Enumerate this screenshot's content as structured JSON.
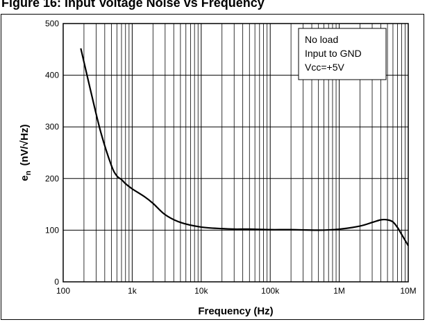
{
  "header": {
    "title": "Figure 16: Input Voltage Noise vs Frequency"
  },
  "chart_data": {
    "type": "line",
    "title": "Input Voltage Noise vs Frequency",
    "xlabel": "Frequency  (Hz)",
    "ylabel_main": "e",
    "ylabel_sub": "n",
    "ylabel_units": "(nV/√Hz)",
    "x_scale": "log",
    "xlim": [
      100,
      10000000
    ],
    "ylim": [
      0,
      500
    ],
    "x_ticks": [
      {
        "value": 100,
        "label": "100"
      },
      {
        "value": 1000,
        "label": "1k"
      },
      {
        "value": 10000,
        "label": "10k"
      },
      {
        "value": 100000,
        "label": "100k"
      },
      {
        "value": 1000000,
        "label": "1M"
      },
      {
        "value": 10000000,
        "label": "10M"
      }
    ],
    "y_ticks": [
      0,
      100,
      200,
      300,
      400,
      500
    ],
    "grid": true,
    "legend_box": {
      "placement": "top-right",
      "lines": [
        "No load",
        "Input to GND",
        "Vcc=+5V"
      ]
    },
    "series": [
      {
        "color": "#000000",
        "x": [
          180,
          250,
          350,
          500,
          600,
          700,
          800,
          1000,
          1500,
          2000,
          3000,
          5000,
          10000,
          20000,
          30000,
          50000,
          100000,
          200000,
          500000,
          1000000,
          2000000,
          3000000,
          4000000,
          5000000,
          6000000,
          7000000,
          8000000,
          10000000
        ],
        "y": [
          452,
          370,
          290,
          225,
          205,
          198,
          190,
          180,
          165,
          152,
          130,
          115,
          106,
          103,
          102,
          102,
          101,
          101,
          100,
          102,
          108,
          115,
          120,
          120,
          116,
          105,
          92,
          70
        ]
      }
    ]
  }
}
